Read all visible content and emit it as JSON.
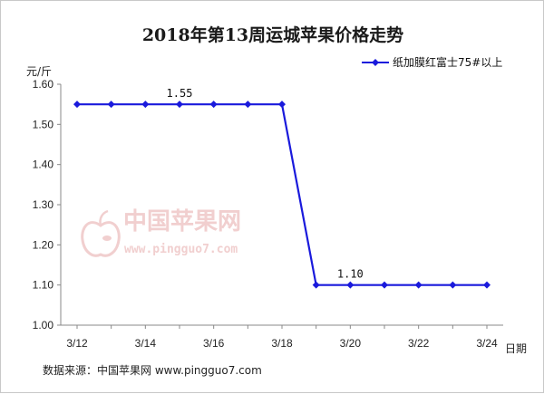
{
  "chart_data": {
    "type": "line",
    "title": "2018年第13周运城苹果价格走势",
    "ylabel": "元/斤",
    "xlabel": "日期",
    "ylim": [
      1.0,
      1.6
    ],
    "y_ticks": [
      "1.00",
      "1.10",
      "1.20",
      "1.30",
      "1.40",
      "1.50",
      "1.60"
    ],
    "y_tick_values": [
      1.0,
      1.1,
      1.2,
      1.3,
      1.4,
      1.5,
      1.6
    ],
    "x": [
      "3/12",
      "3/13",
      "3/14",
      "3/15",
      "3/16",
      "3/17",
      "3/18",
      "3/19",
      "3/20",
      "3/21",
      "3/22",
      "3/23",
      "3/24"
    ],
    "x_tick_labels": [
      "3/12",
      "",
      "3/14",
      "",
      "3/16",
      "",
      "3/18",
      "",
      "3/20",
      "",
      "3/22",
      "",
      "3/24"
    ],
    "series": [
      {
        "name": "纸加膜红富士75#以上",
        "color": "#1a1adc",
        "values": [
          1.55,
          1.55,
          1.55,
          1.55,
          1.55,
          1.55,
          1.55,
          1.1,
          1.1,
          1.1,
          1.1,
          1.1,
          1.1
        ]
      }
    ],
    "data_labels": [
      {
        "index": 3,
        "text": "1.55"
      },
      {
        "index": 8,
        "text": "1.10"
      }
    ],
    "legend_position": "top-right",
    "grid": false
  },
  "watermark": {
    "brand": "中国苹果网",
    "url": "www.pingguo7.com",
    "icon": "apple-icon"
  },
  "source_note": "数据来源：中国苹果网 www.pingguo7.com"
}
